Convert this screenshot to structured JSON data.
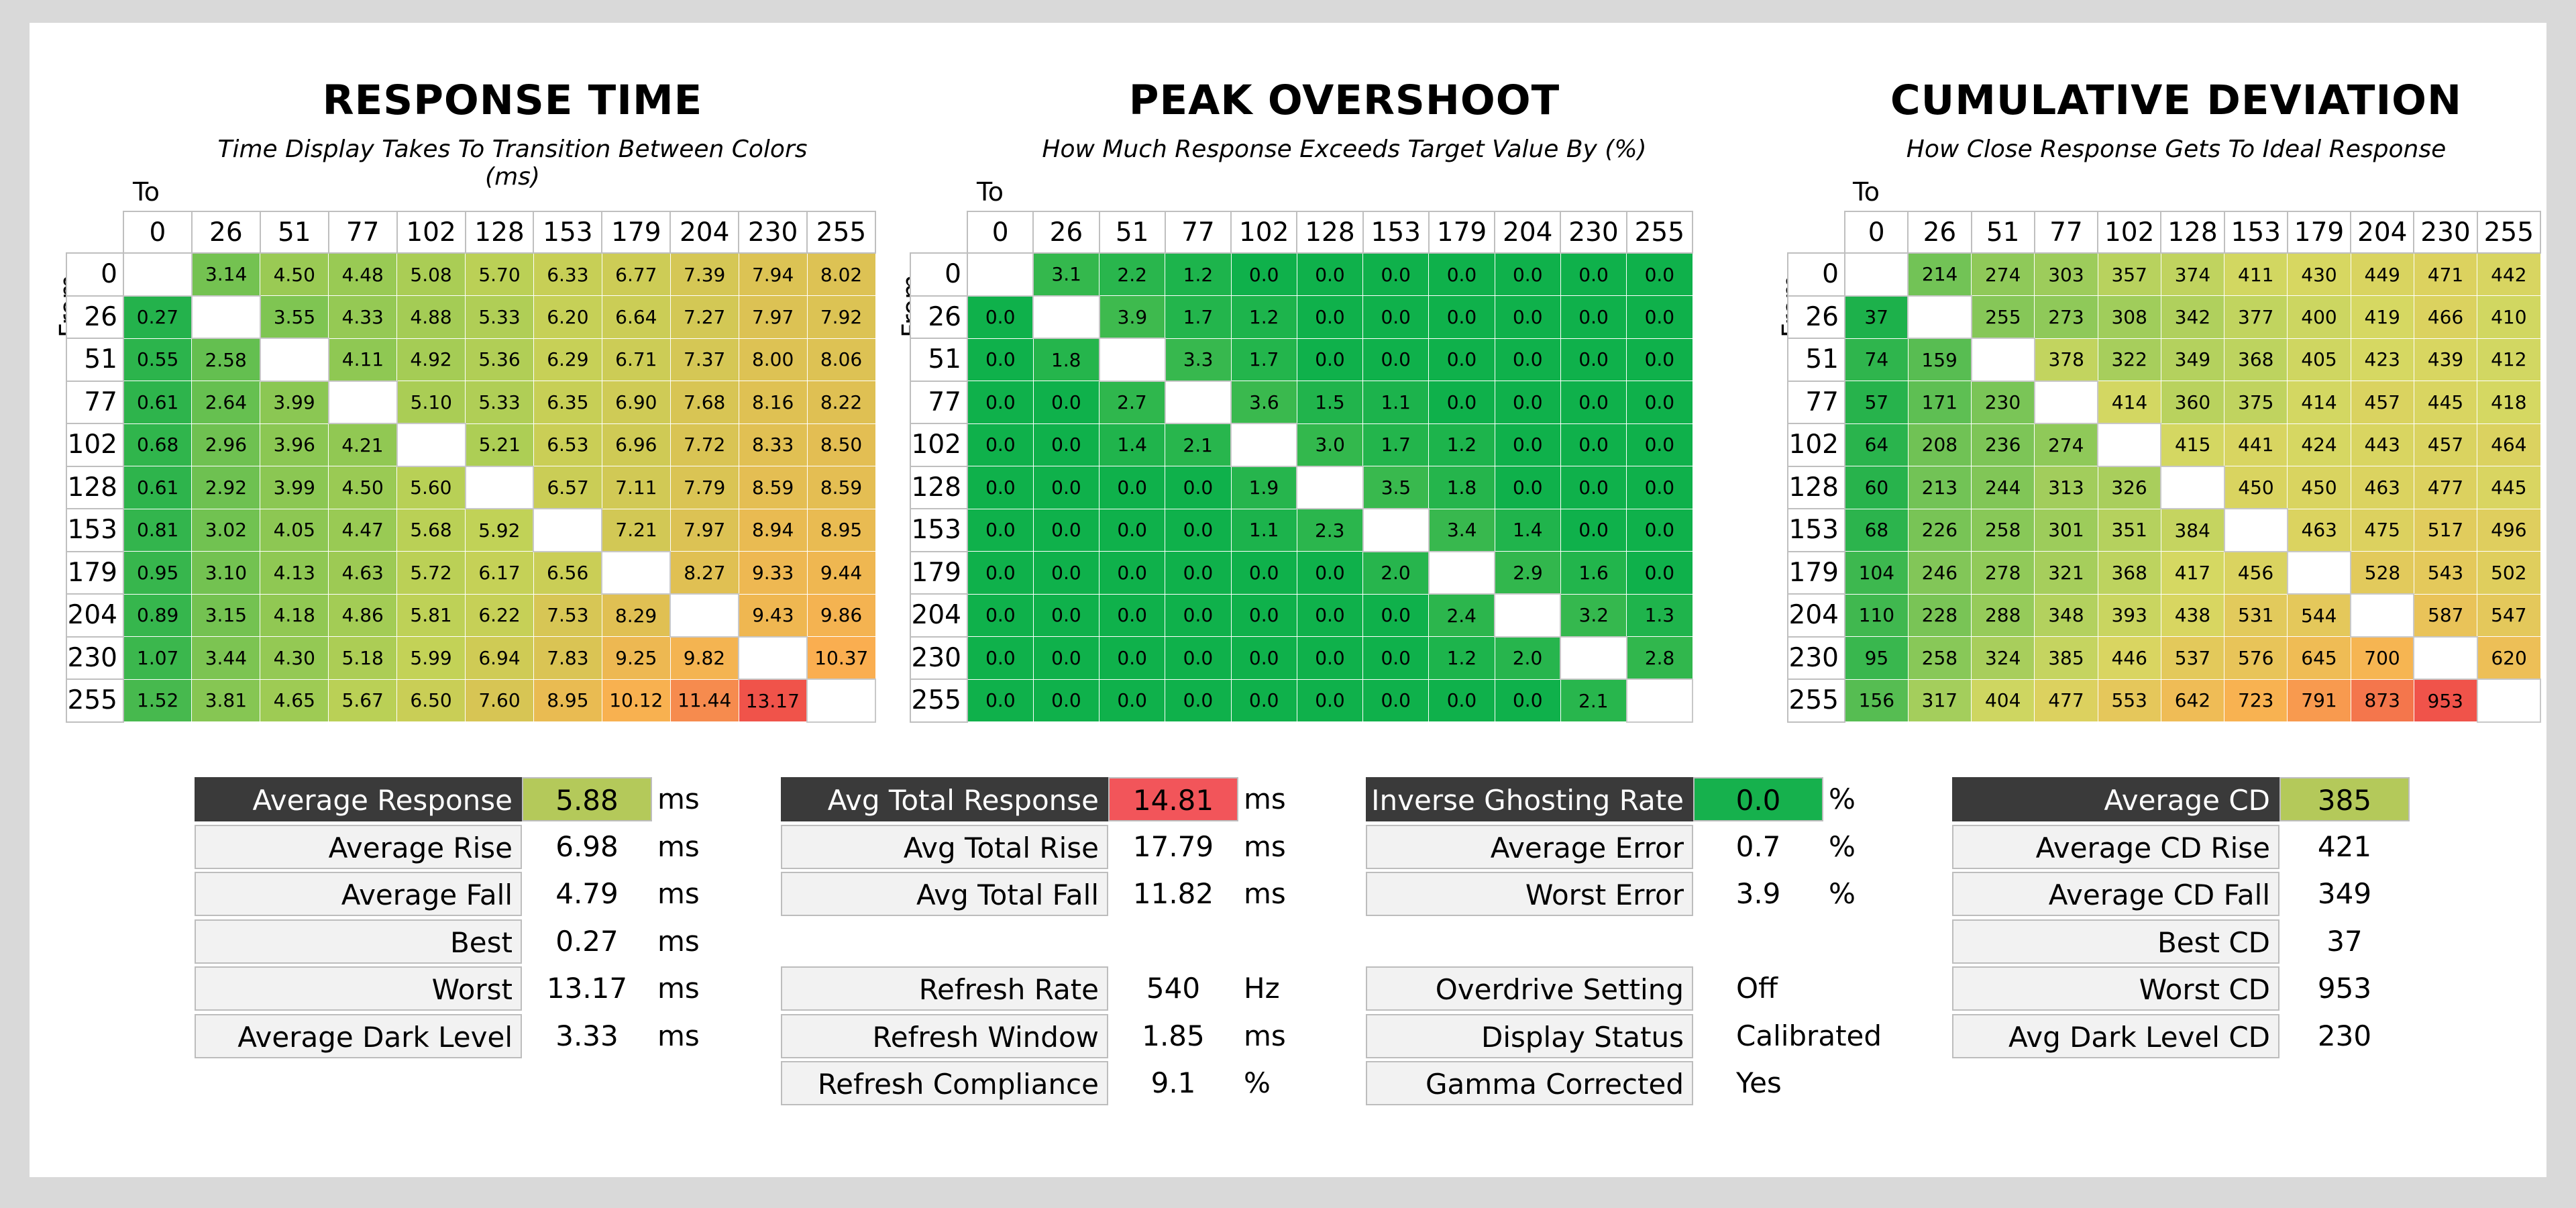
{
  "chart_data": [
    {
      "type": "heatmap",
      "title": "RESPONSE TIME",
      "subtitle": "Time Display Takes To Transition Between Colors (ms)",
      "xlabel": "To",
      "ylabel": "From",
      "x": [
        "0",
        "26",
        "51",
        "77",
        "102",
        "128",
        "153",
        "179",
        "204",
        "230",
        "255"
      ],
      "y": [
        "0",
        "26",
        "51",
        "77",
        "102",
        "128",
        "153",
        "179",
        "204",
        "230",
        "255"
      ],
      "values": [
        [
          "",
          "3.14",
          "4.50",
          "4.48",
          "5.08",
          "5.70",
          "6.33",
          "6.77",
          "7.39",
          "7.94",
          "8.02"
        ],
        [
          "0.27",
          "",
          "3.55",
          "4.33",
          "4.88",
          "5.33",
          "6.20",
          "6.64",
          "7.27",
          "7.97",
          "7.92"
        ],
        [
          "0.55",
          "2.58",
          "",
          "4.11",
          "4.92",
          "5.36",
          "6.29",
          "6.71",
          "7.37",
          "8.00",
          "8.06"
        ],
        [
          "0.61",
          "2.64",
          "3.99",
          "",
          "5.10",
          "5.33",
          "6.35",
          "6.90",
          "7.68",
          "8.16",
          "8.22"
        ],
        [
          "0.68",
          "2.96",
          "3.96",
          "4.21",
          "",
          "5.21",
          "6.53",
          "6.96",
          "7.72",
          "8.33",
          "8.50"
        ],
        [
          "0.61",
          "2.92",
          "3.99",
          "4.50",
          "5.60",
          "",
          "6.57",
          "7.11",
          "7.79",
          "8.59",
          "8.59"
        ],
        [
          "0.81",
          "3.02",
          "4.05",
          "4.47",
          "5.68",
          "5.92",
          "",
          "7.21",
          "7.97",
          "8.94",
          "8.95"
        ],
        [
          "0.95",
          "3.10",
          "4.13",
          "4.63",
          "5.72",
          "6.17",
          "6.56",
          "",
          "8.27",
          "9.33",
          "9.44"
        ],
        [
          "0.89",
          "3.15",
          "4.18",
          "4.86",
          "5.81",
          "6.22",
          "7.53",
          "8.29",
          "",
          "9.43",
          "9.86"
        ],
        [
          "1.07",
          "3.44",
          "4.30",
          "5.18",
          "5.99",
          "6.94",
          "7.83",
          "9.25",
          "9.82",
          "",
          "10.37"
        ],
        [
          "1.52",
          "3.81",
          "4.65",
          "5.67",
          "6.50",
          "7.60",
          "8.95",
          "10.12",
          "11.44",
          "13.17",
          ""
        ]
      ],
      "color_scale": {
        "min": 0,
        "mid": 6,
        "max": 13.17,
        "low": "#1db14b",
        "midc": "#c3d257",
        "high": "#f0534a"
      }
    },
    {
      "type": "heatmap",
      "title": "PEAK OVERSHOOT",
      "subtitle": "How Much Response Exceeds Target Value By (%)",
      "xlabel": "To",
      "ylabel": "From",
      "x": [
        "0",
        "26",
        "51",
        "77",
        "102",
        "128",
        "153",
        "179",
        "204",
        "230",
        "255"
      ],
      "y": [
        "0",
        "26",
        "51",
        "77",
        "102",
        "128",
        "153",
        "179",
        "204",
        "230",
        "255"
      ],
      "values": [
        [
          "",
          "3.1",
          "2.2",
          "1.2",
          "0.0",
          "0.0",
          "0.0",
          "0.0",
          "0.0",
          "0.0",
          "0.0"
        ],
        [
          "0.0",
          "",
          "3.9",
          "1.7",
          "1.2",
          "0.0",
          "0.0",
          "0.0",
          "0.0",
          "0.0",
          "0.0"
        ],
        [
          "0.0",
          "1.8",
          "",
          "3.3",
          "1.7",
          "0.0",
          "0.0",
          "0.0",
          "0.0",
          "0.0",
          "0.0"
        ],
        [
          "0.0",
          "0.0",
          "2.7",
          "",
          "3.6",
          "1.5",
          "1.1",
          "0.0",
          "0.0",
          "0.0",
          "0.0"
        ],
        [
          "0.0",
          "0.0",
          "1.4",
          "2.1",
          "",
          "3.0",
          "1.7",
          "1.2",
          "0.0",
          "0.0",
          "0.0"
        ],
        [
          "0.0",
          "0.0",
          "0.0",
          "0.0",
          "1.9",
          "",
          "3.5",
          "1.8",
          "0.0",
          "0.0",
          "0.0"
        ],
        [
          "0.0",
          "0.0",
          "0.0",
          "0.0",
          "1.1",
          "2.3",
          "",
          "3.4",
          "1.4",
          "0.0",
          "0.0"
        ],
        [
          "0.0",
          "0.0",
          "0.0",
          "0.0",
          "0.0",
          "0.0",
          "2.0",
          "",
          "2.9",
          "1.6",
          "0.0"
        ],
        [
          "0.0",
          "0.0",
          "0.0",
          "0.0",
          "0.0",
          "0.0",
          "0.0",
          "2.4",
          "",
          "3.2",
          "1.3"
        ],
        [
          "0.0",
          "0.0",
          "0.0",
          "0.0",
          "0.0",
          "0.0",
          "0.0",
          "1.2",
          "2.0",
          "",
          "2.8"
        ],
        [
          "0.0",
          "0.0",
          "0.0",
          "0.0",
          "0.0",
          "0.0",
          "0.0",
          "0.0",
          "0.0",
          "2.1",
          ""
        ]
      ],
      "color_scale": {
        "min": 0,
        "mid": 15,
        "max": 30,
        "low": "#0fb14b",
        "midc": "#c3d257",
        "high": "#f0534a"
      }
    },
    {
      "type": "heatmap",
      "title": "CUMULATIVE DEVIATION",
      "subtitle": "How Close Response Gets To Ideal Response",
      "xlabel": "To",
      "ylabel": "From",
      "x": [
        "0",
        "26",
        "51",
        "77",
        "102",
        "128",
        "153",
        "179",
        "204",
        "230",
        "255"
      ],
      "y": [
        "0",
        "26",
        "51",
        "77",
        "102",
        "128",
        "153",
        "179",
        "204",
        "230",
        "255"
      ],
      "values": [
        [
          "",
          "214",
          "274",
          "303",
          "357",
          "374",
          "411",
          "430",
          "449",
          "471",
          "442"
        ],
        [
          "37",
          "",
          "255",
          "273",
          "308",
          "342",
          "377",
          "400",
          "419",
          "466",
          "410"
        ],
        [
          "74",
          "159",
          "",
          "378",
          "322",
          "349",
          "368",
          "405",
          "423",
          "439",
          "412"
        ],
        [
          "57",
          "171",
          "230",
          "",
          "414",
          "360",
          "375",
          "414",
          "457",
          "445",
          "418"
        ],
        [
          "64",
          "208",
          "236",
          "274",
          "",
          "415",
          "441",
          "424",
          "443",
          "457",
          "464"
        ],
        [
          "60",
          "213",
          "244",
          "313",
          "326",
          "",
          "450",
          "450",
          "463",
          "477",
          "445"
        ],
        [
          "68",
          "226",
          "258",
          "301",
          "351",
          "384",
          "",
          "463",
          "475",
          "517",
          "496"
        ],
        [
          "104",
          "246",
          "278",
          "321",
          "368",
          "417",
          "456",
          "",
          "528",
          "543",
          "502"
        ],
        [
          "110",
          "228",
          "288",
          "348",
          "393",
          "438",
          "531",
          "544",
          "",
          "587",
          "547"
        ],
        [
          "95",
          "258",
          "324",
          "385",
          "446",
          "537",
          "576",
          "645",
          "700",
          "",
          "620"
        ],
        [
          "156",
          "317",
          "404",
          "477",
          "553",
          "642",
          "723",
          "791",
          "873",
          "953",
          ""
        ]
      ],
      "color_scale": {
        "min": 37,
        "mid": 420,
        "max": 953,
        "low": "#1db14b",
        "midc": "#d6d862",
        "high": "#f0534a"
      }
    }
  ],
  "stats": {
    "response": [
      {
        "label": "Average Response",
        "value": "5.88",
        "unit": "ms",
        "header": true,
        "color": "#b4c95a"
      },
      {
        "label": "Average Rise",
        "value": "6.98",
        "unit": "ms"
      },
      {
        "label": "Average Fall",
        "value": "4.79",
        "unit": "ms"
      },
      {
        "label": "Best",
        "value": "0.27",
        "unit": "ms"
      },
      {
        "label": "Worst",
        "value": "13.17",
        "unit": "ms"
      },
      {
        "label": "Average Dark Level",
        "value": "3.33",
        "unit": "ms"
      }
    ],
    "total": [
      {
        "label": "Avg Total Response",
        "value": "14.81",
        "unit": "ms",
        "header": true,
        "color": "#f2555a"
      },
      {
        "label": "Avg Total Rise",
        "value": "17.79",
        "unit": "ms"
      },
      {
        "label": "Avg Total Fall",
        "value": "11.82",
        "unit": "ms"
      }
    ],
    "refresh": [
      {
        "label": "Refresh Rate",
        "value": "540",
        "unit": "Hz"
      },
      {
        "label": "Refresh Window",
        "value": "1.85",
        "unit": "ms"
      },
      {
        "label": "Refresh Compliance",
        "value": "9.1",
        "unit": "%"
      }
    ],
    "ghosting": [
      {
        "label": "Inverse Ghosting Rate",
        "value": "0.0",
        "unit": "%",
        "header": true,
        "color": "#16b14d"
      },
      {
        "label": "Average Error",
        "value": "0.7",
        "unit": "%"
      },
      {
        "label": "Worst Error",
        "value": "3.9",
        "unit": "%"
      }
    ],
    "settings": [
      {
        "label": "Overdrive Setting",
        "value": "Off",
        "unit": ""
      },
      {
        "label": "Display Status",
        "value": "Calibrated",
        "unit": ""
      },
      {
        "label": "Gamma Corrected",
        "value": "Yes",
        "unit": ""
      }
    ],
    "cd": [
      {
        "label": "Average CD",
        "value": "385",
        "unit": "",
        "header": true,
        "color": "#b4c95a"
      },
      {
        "label": "Average CD Rise",
        "value": "421",
        "unit": ""
      },
      {
        "label": "Average CD Fall",
        "value": "349",
        "unit": ""
      },
      {
        "label": "Best CD",
        "value": "37",
        "unit": ""
      },
      {
        "label": "Worst CD",
        "value": "953",
        "unit": ""
      },
      {
        "label": "Avg Dark Level CD",
        "value": "230",
        "unit": ""
      }
    ]
  }
}
